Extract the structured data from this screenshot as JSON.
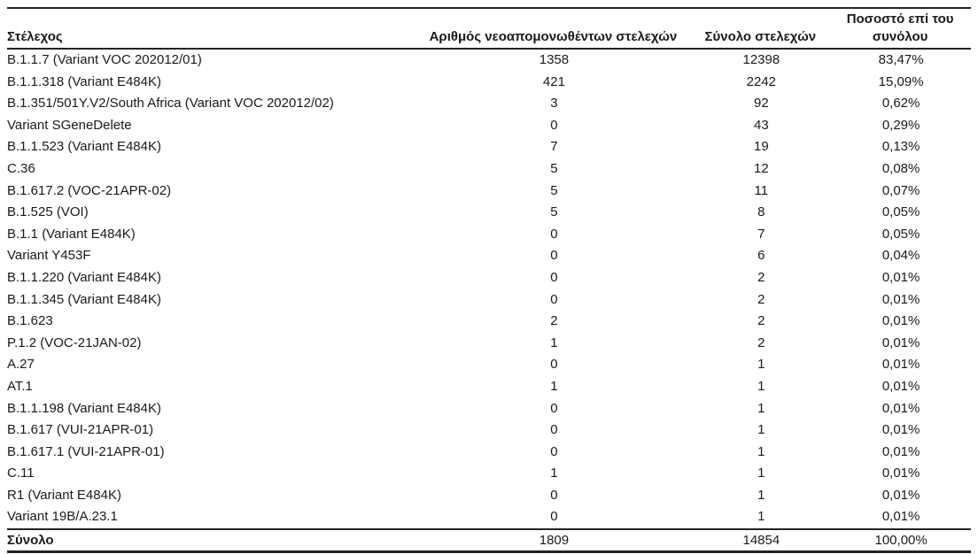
{
  "table": {
    "columns": [
      {
        "label": "Στέλεχος"
      },
      {
        "label": "Αριθμός νεοαπομονωθέντων στελεχών"
      },
      {
        "label": "Σύνολο στελεχών"
      },
      {
        "label": "Ποσοστό επί του συνόλου"
      }
    ],
    "rows": [
      [
        "B.1.1.7 (Variant VOC 202012/01)",
        "1358",
        "12398",
        "83,47%"
      ],
      [
        "B.1.1.318 (Variant E484K)",
        "421",
        "2242",
        "15,09%"
      ],
      [
        "B.1.351/501Y.V2/South Africa (Variant VOC 202012/02)",
        "3",
        "92",
        "0,62%"
      ],
      [
        "Variant SGeneDelete",
        "0",
        "43",
        "0,29%"
      ],
      [
        "B.1.1.523 (Variant E484K)",
        "7",
        "19",
        "0,13%"
      ],
      [
        "C.36",
        "5",
        "12",
        "0,08%"
      ],
      [
        "B.1.617.2 (VOC-21APR-02)",
        "5",
        "11",
        "0,07%"
      ],
      [
        "B.1.525 (VOI)",
        "5",
        "8",
        "0,05%"
      ],
      [
        "B.1.1 (Variant E484K)",
        "0",
        "7",
        "0,05%"
      ],
      [
        "Variant Y453F",
        "0",
        "6",
        "0,04%"
      ],
      [
        "B.1.1.220 (Variant E484K)",
        "0",
        "2",
        "0,01%"
      ],
      [
        "B.1.1.345 (Variant E484K)",
        "0",
        "2",
        "0,01%"
      ],
      [
        "B.1.623",
        "2",
        "2",
        "0,01%"
      ],
      [
        "P.1.2 (VOC-21JAN-02)",
        "1",
        "2",
        "0,01%"
      ],
      [
        "A.27",
        "0",
        "1",
        "0,01%"
      ],
      [
        "AT.1",
        "1",
        "1",
        "0,01%"
      ],
      [
        "B.1.1.198 (Variant E484K)",
        "0",
        "1",
        "0,01%"
      ],
      [
        "B.1.617 (VUI-21APR-01)",
        "0",
        "1",
        "0,01%"
      ],
      [
        "B.1.617.1 (VUI-21APR-01)",
        "0",
        "1",
        "0,01%"
      ],
      [
        "C.11",
        "1",
        "1",
        "0,01%"
      ],
      [
        "R1 (Variant E484K)",
        "0",
        "1",
        "0,01%"
      ],
      [
        "Variant 19B/A.23.1",
        "0",
        "1",
        "0,01%"
      ]
    ],
    "total": [
      "Σύνολο",
      "1809",
      "14854",
      "100,00%"
    ]
  },
  "colors": {
    "background": "#ffffff",
    "text": "#1a1a1a",
    "border": "#242424"
  }
}
